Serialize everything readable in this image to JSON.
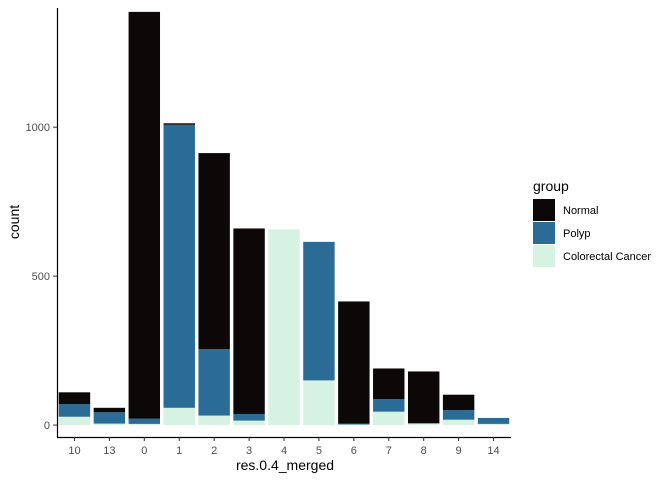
{
  "chart_data": {
    "type": "bar",
    "stacked": true,
    "xlabel": "res.0.4_merged",
    "ylabel": "count",
    "categories": [
      "10",
      "13",
      "0",
      "1",
      "2",
      "3",
      "4",
      "5",
      "6",
      "7",
      "8",
      "9",
      "14"
    ],
    "yticks": [
      0,
      500,
      1000
    ],
    "ylim": [
      -40,
      1400
    ],
    "grid": false,
    "legend": {
      "title": "group",
      "position": "right"
    },
    "series": [
      {
        "name": "Colorectal Cancer",
        "color": "#d5f2e3",
        "values": [
          28,
          5,
          4,
          58,
          32,
          15,
          657,
          150,
          2,
          45,
          5,
          18,
          4
        ]
      },
      {
        "name": "Polyp",
        "color": "#2a6c96",
        "values": [
          42,
          38,
          18,
          950,
          223,
          22,
          0,
          465,
          3,
          42,
          2,
          32,
          20
        ]
      },
      {
        "name": "Normal",
        "color": "#0c0808",
        "values": [
          40,
          15,
          1365,
          5,
          658,
          623,
          0,
          0,
          410,
          103,
          173,
          52,
          0
        ]
      }
    ],
    "legend_order": [
      "Normal",
      "Polyp",
      "Colorectal Cancer"
    ]
  }
}
